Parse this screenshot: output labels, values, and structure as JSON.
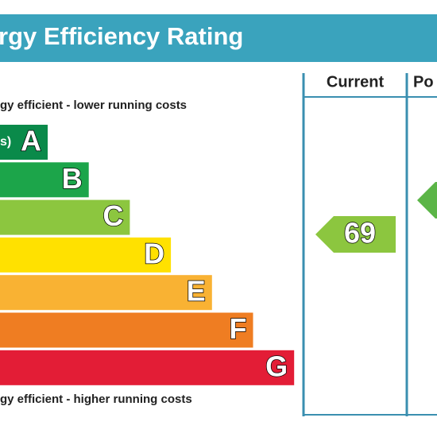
{
  "header": {
    "title": "rgy Efficiency Rating"
  },
  "columns": [
    "Current",
    "Po"
  ],
  "top_note": "gy efficient - lower running costs",
  "bottom_note": "gy efficient - higher running costs",
  "bands": [
    {
      "range": "s)",
      "letter": "A",
      "color": "#0a8a4a"
    },
    {
      "letter": "B",
      "color": "#1ca54a"
    },
    {
      "letter": "C",
      "color": "#8cc63f"
    },
    {
      "letter": "D",
      "color": "#ffe100"
    },
    {
      "letter": "E",
      "color": "#f9b233"
    },
    {
      "letter": "F",
      "color": "#ef7d22"
    },
    {
      "letter": "G",
      "color": "#e31d36"
    }
  ],
  "current": {
    "value": "69",
    "color": "#8cc63f"
  },
  "potential": {
    "color": "#5bb547"
  }
}
